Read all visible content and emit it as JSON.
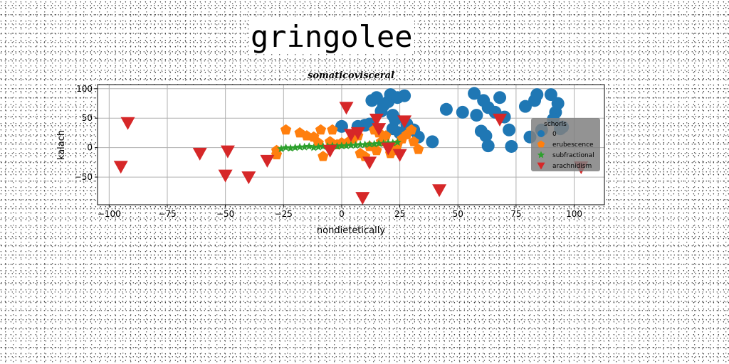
{
  "figure_title": "gringolee",
  "chart_data": {
    "type": "scatter",
    "title": "somaticovisceral",
    "xlabel": "nondietetically",
    "ylabel": "kalach",
    "xlim": [
      -105,
      113
    ],
    "ylim": [
      -97,
      107
    ],
    "xticks": [
      -100,
      -75,
      -50,
      -25,
      0,
      25,
      50,
      75,
      100
    ],
    "yticks": [
      -50,
      0,
      50,
      100
    ],
    "grid": true,
    "legend": {
      "title": "schorls",
      "placement": "right"
    },
    "series": [
      {
        "name": "0",
        "marker": "circle",
        "color": "#1f77b4",
        "points": [
          [
            0,
            36
          ],
          [
            7,
            36
          ],
          [
            10,
            38
          ],
          [
            12,
            40
          ],
          [
            13,
            80
          ],
          [
            15,
            85
          ],
          [
            17,
            62
          ],
          [
            18,
            72
          ],
          [
            20,
            78
          ],
          [
            21,
            90
          ],
          [
            22,
            55
          ],
          [
            22,
            32
          ],
          [
            23,
            48
          ],
          [
            24,
            85
          ],
          [
            25,
            25
          ],
          [
            27,
            88
          ],
          [
            28,
            40
          ],
          [
            31,
            30
          ],
          [
            33,
            18
          ],
          [
            39,
            10
          ],
          [
            45,
            65
          ],
          [
            52,
            60
          ],
          [
            57,
            92
          ],
          [
            58,
            55
          ],
          [
            60,
            28
          ],
          [
            61,
            80
          ],
          [
            62,
            20
          ],
          [
            63,
            68
          ],
          [
            63,
            3
          ],
          [
            66,
            60
          ],
          [
            68,
            85
          ],
          [
            70,
            52
          ],
          [
            72,
            30
          ],
          [
            73,
            2
          ],
          [
            79,
            70
          ],
          [
            81,
            18
          ],
          [
            83,
            80
          ],
          [
            84,
            90
          ],
          [
            86,
            30
          ],
          [
            90,
            90
          ],
          [
            92,
            60
          ],
          [
            93,
            75
          ],
          [
            94,
            32
          ],
          [
            95,
            35
          ],
          [
            91,
            48
          ]
        ]
      },
      {
        "name": "erubescence",
        "marker": "pentagon",
        "color": "#ff7f0e",
        "points": [
          [
            -28,
            -5
          ],
          [
            -28,
            -12
          ],
          [
            -24,
            30
          ],
          [
            -18,
            25
          ],
          [
            -15,
            20
          ],
          [
            -12,
            18
          ],
          [
            -10,
            8
          ],
          [
            -9,
            30
          ],
          [
            -8,
            -15
          ],
          [
            -5,
            10
          ],
          [
            -4,
            30
          ],
          [
            -2,
            5
          ],
          [
            0,
            8
          ],
          [
            3,
            10
          ],
          [
            5,
            15
          ],
          [
            7,
            20
          ],
          [
            8,
            -10
          ],
          [
            10,
            -15
          ],
          [
            12,
            2
          ],
          [
            14,
            30
          ],
          [
            15,
            -5
          ],
          [
            16,
            25
          ],
          [
            17,
            10
          ],
          [
            19,
            20
          ],
          [
            21,
            -10
          ],
          [
            22,
            -5
          ],
          [
            24,
            5
          ],
          [
            26,
            15
          ],
          [
            28,
            22
          ],
          [
            30,
            30
          ],
          [
            31,
            10
          ],
          [
            33,
            -3
          ]
        ]
      },
      {
        "name": "subfractional",
        "marker": "star",
        "color": "#2ca02c",
        "points": [
          [
            -26,
            -2
          ],
          [
            -24,
            0
          ],
          [
            -22,
            -1
          ],
          [
            -20,
            0
          ],
          [
            -18,
            1
          ],
          [
            -16,
            1
          ],
          [
            -14,
            2
          ],
          [
            -12,
            0
          ],
          [
            -10,
            1
          ],
          [
            -8,
            2
          ],
          [
            -6,
            2
          ],
          [
            -4,
            3
          ],
          [
            -2,
            2
          ],
          [
            0,
            3
          ],
          [
            2,
            3
          ],
          [
            4,
            4
          ],
          [
            6,
            4
          ],
          [
            8,
            5
          ],
          [
            10,
            5
          ],
          [
            12,
            6
          ],
          [
            14,
            6
          ],
          [
            16,
            7
          ],
          [
            18,
            7
          ],
          [
            20,
            8
          ],
          [
            22,
            8
          ],
          [
            24,
            9
          ]
        ]
      },
      {
        "name": "arachnidism",
        "marker": "triangle_down",
        "color": "#d62728",
        "points": [
          [
            -95,
            -32
          ],
          [
            -92,
            42
          ],
          [
            -61,
            -10
          ],
          [
            -50,
            -47
          ],
          [
            -49,
            -6
          ],
          [
            -40,
            -50
          ],
          [
            -32,
            -22
          ],
          [
            -5,
            -5
          ],
          [
            2,
            68
          ],
          [
            4,
            22
          ],
          [
            7,
            25
          ],
          [
            9,
            -85
          ],
          [
            12,
            -25
          ],
          [
            15,
            48
          ],
          [
            16,
            32
          ],
          [
            20,
            -1
          ],
          [
            25,
            -12
          ],
          [
            27,
            45
          ],
          [
            42,
            -72
          ],
          [
            68,
            48
          ],
          [
            103,
            -33
          ]
        ]
      }
    ]
  }
}
